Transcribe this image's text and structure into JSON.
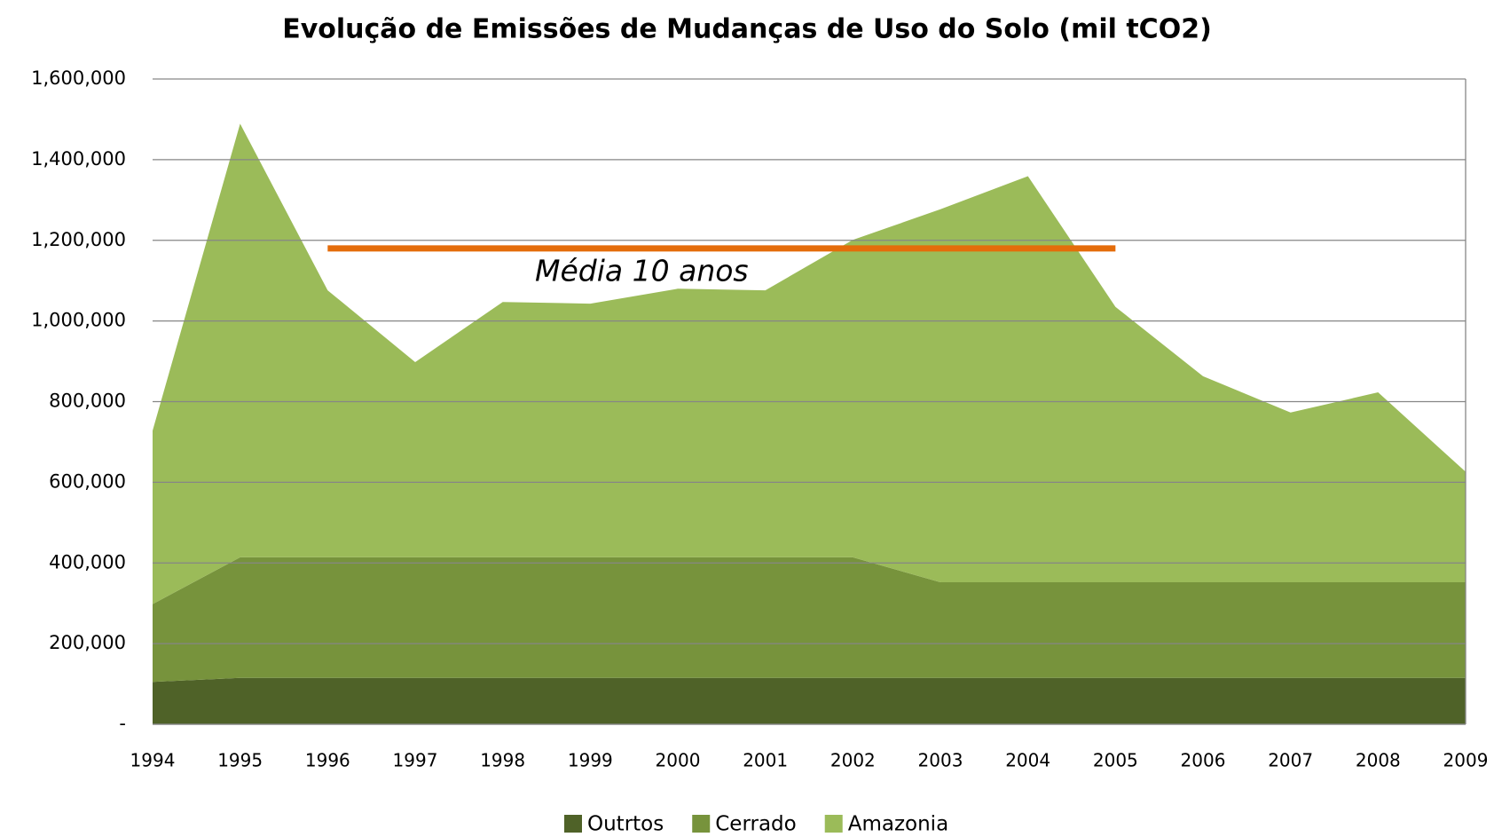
{
  "chart_data": {
    "type": "stacked-area",
    "title": "Evolução de Emissões de Mudanças de Uso do Solo (mil tCO2)",
    "categories": [
      "1994",
      "1995",
      "1996",
      "1997",
      "1998",
      "1999",
      "2000",
      "2001",
      "2002",
      "2003",
      "2004",
      "2005",
      "2006",
      "2007",
      "2008",
      "2009"
    ],
    "series": [
      {
        "name": "Outrtos",
        "color": "#4f6228",
        "values": [
          105000,
          115000,
          115000,
          115000,
          115000,
          115000,
          115000,
          115000,
          115000,
          115000,
          115000,
          115000,
          115000,
          115000,
          115000,
          115000
        ]
      },
      {
        "name": "Cerrado",
        "color": "#77933c",
        "values": [
          193000,
          299000,
          299000,
          299000,
          299000,
          299000,
          299000,
          299000,
          299000,
          237000,
          237000,
          237000,
          237000,
          237000,
          237000,
          237000
        ]
      },
      {
        "name": "Amazonia",
        "color": "#9bbb59",
        "values": [
          430000,
          1075000,
          662000,
          484000,
          633000,
          629000,
          666000,
          662000,
          787000,
          925000,
          1007000,
          683000,
          511000,
          421000,
          471000,
          274000
        ]
      }
    ],
    "ylim": [
      0,
      1600000
    ],
    "yticks": [
      {
        "value": 0,
        "label": "-"
      },
      {
        "value": 200000,
        "label": "200,000"
      },
      {
        "value": 400000,
        "label": "400,000"
      },
      {
        "value": 600000,
        "label": "600,000"
      },
      {
        "value": 800000,
        "label": "800,000"
      },
      {
        "value": 1000000,
        "label": "1,000,000"
      },
      {
        "value": 1200000,
        "label": "1,200,000"
      },
      {
        "value": 1400000,
        "label": "1,400,000"
      },
      {
        "value": 1600000,
        "label": "1,600,000"
      }
    ],
    "grid": true,
    "legend": "bottom",
    "reference_line": {
      "label": "Média 10 anos",
      "value": 1180000,
      "from": "1996",
      "to": "2005",
      "color": "#e46c0a"
    }
  }
}
